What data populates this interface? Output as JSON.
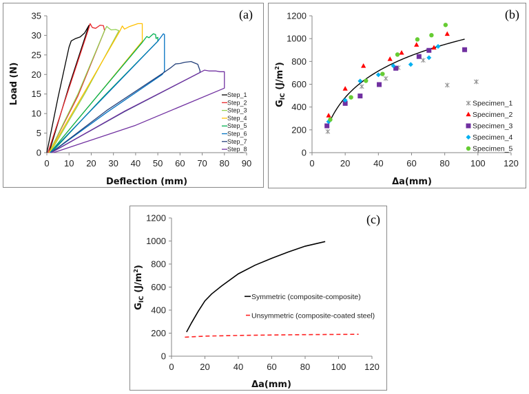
{
  "chart_data": [
    {
      "id": "a",
      "type": "line",
      "panel_label": "(a)",
      "xlabel": "Deflection (mm)",
      "ylabel": "Load (N)",
      "xlim": [
        0,
        90
      ],
      "ylim": [
        0,
        35
      ],
      "xticks": [
        0,
        10,
        20,
        30,
        40,
        50,
        60,
        70,
        80,
        90
      ],
      "yticks": [
        0,
        5,
        10,
        15,
        20,
        25,
        30,
        35
      ],
      "legend_position": "right",
      "series": [
        {
          "name": "Step_1",
          "color": "#000000",
          "points": [
            [
              0,
              0
            ],
            [
              5,
              14
            ],
            [
              10,
              27
            ],
            [
              11,
              28.6
            ],
            [
              13,
              29.2
            ],
            [
              15,
              29.6
            ],
            [
              17,
              30.6
            ],
            [
              19,
              32.6
            ],
            [
              10,
              17
            ],
            [
              1,
              0
            ]
          ]
        },
        {
          "name": "Step_2",
          "color": "#e8262a",
          "points": [
            [
              0.5,
              0
            ],
            [
              10,
              16.5
            ],
            [
              19,
              32
            ],
            [
              19.5,
              33
            ],
            [
              20.5,
              32
            ],
            [
              22,
              31.8
            ],
            [
              24,
              32.6
            ],
            [
              25.5,
              32.5
            ],
            [
              26,
              31.2
            ],
            [
              14,
              14.5
            ],
            [
              1,
              0
            ]
          ]
        },
        {
          "name": "Step_3",
          "color": "#92d050",
          "points": [
            [
              1,
              0
            ],
            [
              14,
              15
            ],
            [
              26,
              31.2
            ],
            [
              27,
              32.3
            ],
            [
              28,
              31.8
            ],
            [
              29,
              31.4
            ],
            [
              31,
              31.5
            ],
            [
              32.5,
              31.2
            ],
            [
              17,
              15
            ],
            [
              1.5,
              0
            ]
          ]
        },
        {
          "name": "Step_4",
          "color": "#ffc000",
          "points": [
            [
              1,
              0
            ],
            [
              17,
              15.5
            ],
            [
              33,
              31.2
            ],
            [
              34,
              32.4
            ],
            [
              35,
              31.6
            ],
            [
              37,
              32.2
            ],
            [
              39,
              32.6
            ],
            [
              41,
              33
            ],
            [
              43,
              33
            ],
            [
              43,
              28.5
            ],
            [
              22,
              14
            ],
            [
              1.5,
              0
            ]
          ]
        },
        {
          "name": "Step_5",
          "color": "#00b050",
          "points": [
            [
              1.5,
              0
            ],
            [
              22,
              14
            ],
            [
              43,
              28.2
            ],
            [
              45,
              29.7
            ],
            [
              46,
              29.4
            ],
            [
              48,
              30.4
            ],
            [
              49,
              30.2
            ],
            [
              49.2,
              29.2
            ],
            [
              50,
              29.5
            ],
            [
              50,
              28.5
            ],
            [
              25,
              14
            ],
            [
              2,
              0
            ]
          ]
        },
        {
          "name": "Step_6",
          "color": "#0070c0",
          "points": [
            [
              1.5,
              0
            ],
            [
              25,
              13.8
            ],
            [
              50,
              28.5
            ],
            [
              52.5,
              30.4
            ],
            [
              53,
              30.2
            ],
            [
              53,
              20.8
            ],
            [
              52,
              20
            ],
            [
              27,
              10.3
            ],
            [
              2,
              0
            ]
          ]
        },
        {
          "name": "Step_7",
          "color": "#24407a",
          "points": [
            [
              2,
              0
            ],
            [
              27,
              10.8
            ],
            [
              53,
              20.6
            ],
            [
              56,
              21.8
            ],
            [
              58,
              22.7
            ],
            [
              60,
              22.8
            ],
            [
              62,
              23.1
            ],
            [
              65,
              23.3
            ],
            [
              68,
              22.6
            ],
            [
              69,
              21
            ],
            [
              69,
              20.5
            ],
            [
              35,
              10.5
            ],
            [
              2,
              0
            ]
          ]
        },
        {
          "name": "Step_8",
          "color": "#7030a0",
          "points": [
            [
              2,
              0
            ],
            [
              35,
              10.6
            ],
            [
              69,
              20.5
            ],
            [
              71,
              21.1
            ],
            [
              73,
              20.9
            ],
            [
              76,
              20.9
            ],
            [
              78,
              20.7
            ],
            [
              80,
              20.7
            ],
            [
              80,
              16.5
            ],
            [
              40,
              7
            ],
            [
              3,
              0
            ]
          ]
        }
      ]
    },
    {
      "id": "b",
      "type": "scatter",
      "panel_label": "(b)",
      "xlabel": "Δa(mm)",
      "ylabel": {
        "main": "G",
        "sub": "IC",
        "rest": " (J/m",
        "sup": "2",
        "end": ")"
      },
      "xlim": [
        0,
        120
      ],
      "ylim": [
        0,
        1200
      ],
      "xticks": [
        0,
        20,
        40,
        60,
        80,
        100,
        120
      ],
      "yticks": [
        0,
        200,
        400,
        600,
        800,
        1000,
        1200
      ],
      "legend_position": "right",
      "trendline": {
        "type": "logarithmic",
        "a": -522,
        "b": 335.6,
        "x_range": [
          9,
          92
        ],
        "color": "#000000"
      },
      "series": [
        {
          "name": "Specimen_1",
          "marker": "asterisk",
          "color": "#8c8c8c",
          "points": [
            [
              9.5,
              185
            ],
            [
              30,
              580
            ],
            [
              44.5,
              650
            ],
            [
              52,
              745
            ],
            [
              67,
              810
            ],
            [
              81.5,
              592
            ],
            [
              99,
              622
            ]
          ]
        },
        {
          "name": "Specimen_2",
          "marker": "triangle",
          "color": "#ff0000",
          "points": [
            [
              10,
              325
            ],
            [
              20,
              560
            ],
            [
              31,
              760
            ],
            [
              47,
              820
            ],
            [
              54,
              875
            ],
            [
              63,
              945
            ],
            [
              73.5,
              920
            ],
            [
              81.5,
              1040
            ]
          ]
        },
        {
          "name": "Specimen_3",
          "marker": "square",
          "color": "#7030a0",
          "points": [
            [
              9,
              235
            ],
            [
              20,
              432
            ],
            [
              29,
              497
            ],
            [
              40.5,
              597
            ],
            [
              50.5,
              740
            ],
            [
              64.5,
              843
            ],
            [
              70.5,
              897
            ],
            [
              92,
              903
            ]
          ]
        },
        {
          "name": "Specimen_4",
          "marker": "diamond",
          "color": "#00b0f0",
          "points": [
            [
              10,
              272
            ],
            [
              20,
              460
            ],
            [
              29,
              628
            ],
            [
              40,
              683
            ],
            [
              49,
              762
            ],
            [
              59.5,
              773
            ],
            [
              70.5,
              833
            ],
            [
              76,
              932
            ]
          ]
        },
        {
          "name": "Specimen_5",
          "marker": "circle",
          "color": "#66cc33",
          "points": [
            [
              11,
              290
            ],
            [
              23.5,
              485
            ],
            [
              32.5,
              630
            ],
            [
              42.5,
              690
            ],
            [
              51.5,
              860
            ],
            [
              63.5,
              993
            ],
            [
              72,
              1030
            ],
            [
              80.5,
              1120
            ]
          ]
        }
      ]
    },
    {
      "id": "c",
      "type": "line",
      "panel_label": "(c)",
      "xlabel": "Δa(mm)",
      "ylabel": {
        "main": "G",
        "sub": "IC",
        "rest": " (J/m",
        "sup": "2",
        "end": ")"
      },
      "xlim": [
        0,
        120
      ],
      "ylim": [
        0,
        1200
      ],
      "xticks": [
        0,
        20,
        40,
        60,
        80,
        100,
        120
      ],
      "yticks": [
        0,
        200,
        400,
        600,
        800,
        1000,
        1200
      ],
      "legend_position": "center",
      "series": [
        {
          "name": "Symmetric (composite-composite)",
          "color": "#000000",
          "dash": false,
          "points": [
            [
              9,
              210
            ],
            [
              12,
              290
            ],
            [
              16,
              390
            ],
            [
              20,
              480
            ],
            [
              24,
              540
            ],
            [
              30,
              610
            ],
            [
              40,
              715
            ],
            [
              50,
              790
            ],
            [
              60,
              850
            ],
            [
              70,
              905
            ],
            [
              80,
              955
            ],
            [
              92,
              995
            ]
          ]
        },
        {
          "name": "Unsymmetric (composite-coated steel)",
          "color": "#ff2020",
          "dash": true,
          "points": [
            [
              8,
              165
            ],
            [
              20,
              174
            ],
            [
              40,
              180
            ],
            [
              60,
              184
            ],
            [
              80,
              187
            ],
            [
              112,
              190
            ]
          ]
        }
      ]
    }
  ]
}
